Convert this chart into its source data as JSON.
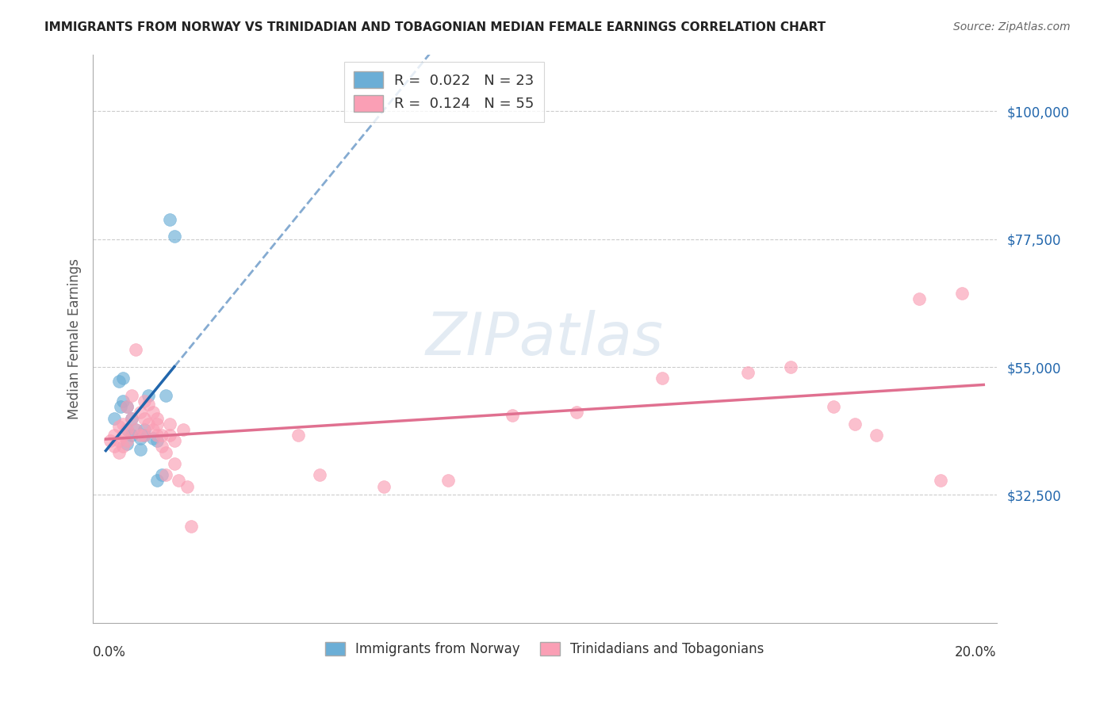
{
  "title": "IMMIGRANTS FROM NORWAY VS TRINIDADIAN AND TOBAGONIAN MEDIAN FEMALE EARNINGS CORRELATION CHART",
  "source": "Source: ZipAtlas.com",
  "ylabel": "Median Female Earnings",
  "norway_color": "#6baed6",
  "tt_color": "#fa9fb5",
  "norway_line_color": "#2166ac",
  "tt_line_color": "#e07090",
  "norway_x": [
    0.002,
    0.003,
    0.0035,
    0.004,
    0.004,
    0.005,
    0.005,
    0.005,
    0.006,
    0.006,
    0.007,
    0.008,
    0.008,
    0.009,
    0.009,
    0.01,
    0.011,
    0.012,
    0.012,
    0.013,
    0.014,
    0.015,
    0.016
  ],
  "norway_y": [
    46000,
    52500,
    48000,
    53000,
    49000,
    44000,
    41500,
    48000,
    43000,
    46000,
    44000,
    42500,
    40500,
    44000,
    43000,
    50000,
    42500,
    35000,
    42000,
    36000,
    50000,
    81000,
    78000
  ],
  "tt_x": [
    0.001,
    0.002,
    0.002,
    0.003,
    0.003,
    0.003,
    0.004,
    0.004,
    0.004,
    0.005,
    0.005,
    0.005,
    0.006,
    0.006,
    0.007,
    0.007,
    0.008,
    0.008,
    0.009,
    0.009,
    0.009,
    0.01,
    0.01,
    0.011,
    0.011,
    0.012,
    0.012,
    0.012,
    0.013,
    0.013,
    0.014,
    0.014,
    0.015,
    0.015,
    0.016,
    0.016,
    0.017,
    0.018,
    0.019,
    0.02,
    0.045,
    0.05,
    0.065,
    0.08,
    0.095,
    0.11,
    0.13,
    0.15,
    0.16,
    0.17,
    0.175,
    0.18,
    0.19,
    0.195,
    0.2
  ],
  "tt_y": [
    42000,
    41000,
    43000,
    44500,
    42000,
    40000,
    45000,
    43000,
    41000,
    48000,
    44000,
    42000,
    50000,
    46000,
    58000,
    44000,
    47000,
    43000,
    49000,
    46000,
    43000,
    45000,
    48500,
    47000,
    44000,
    45000,
    43000,
    46000,
    41000,
    43000,
    36000,
    40000,
    45000,
    43000,
    42000,
    38000,
    35000,
    44000,
    34000,
    27000,
    43000,
    36000,
    34000,
    35000,
    46500,
    47000,
    53000,
    54000,
    55000,
    48000,
    45000,
    43000,
    67000,
    35000,
    68000
  ],
  "xlim": [
    -0.003,
    0.208
  ],
  "ylim": [
    10000,
    110000
  ],
  "yticks": [
    32500,
    55000,
    77500,
    100000
  ],
  "ytick_labels": [
    "$32,500",
    "$55,000",
    "$77,500",
    "$100,000"
  ],
  "grid_color": "#cccccc",
  "watermark": "ZIPatlas",
  "legend1_labels": [
    "R =  0.022   N = 23",
    "R =  0.124   N = 55"
  ],
  "legend2_labels": [
    "Immigrants from Norway",
    "Trinidadians and Tobagonians"
  ]
}
